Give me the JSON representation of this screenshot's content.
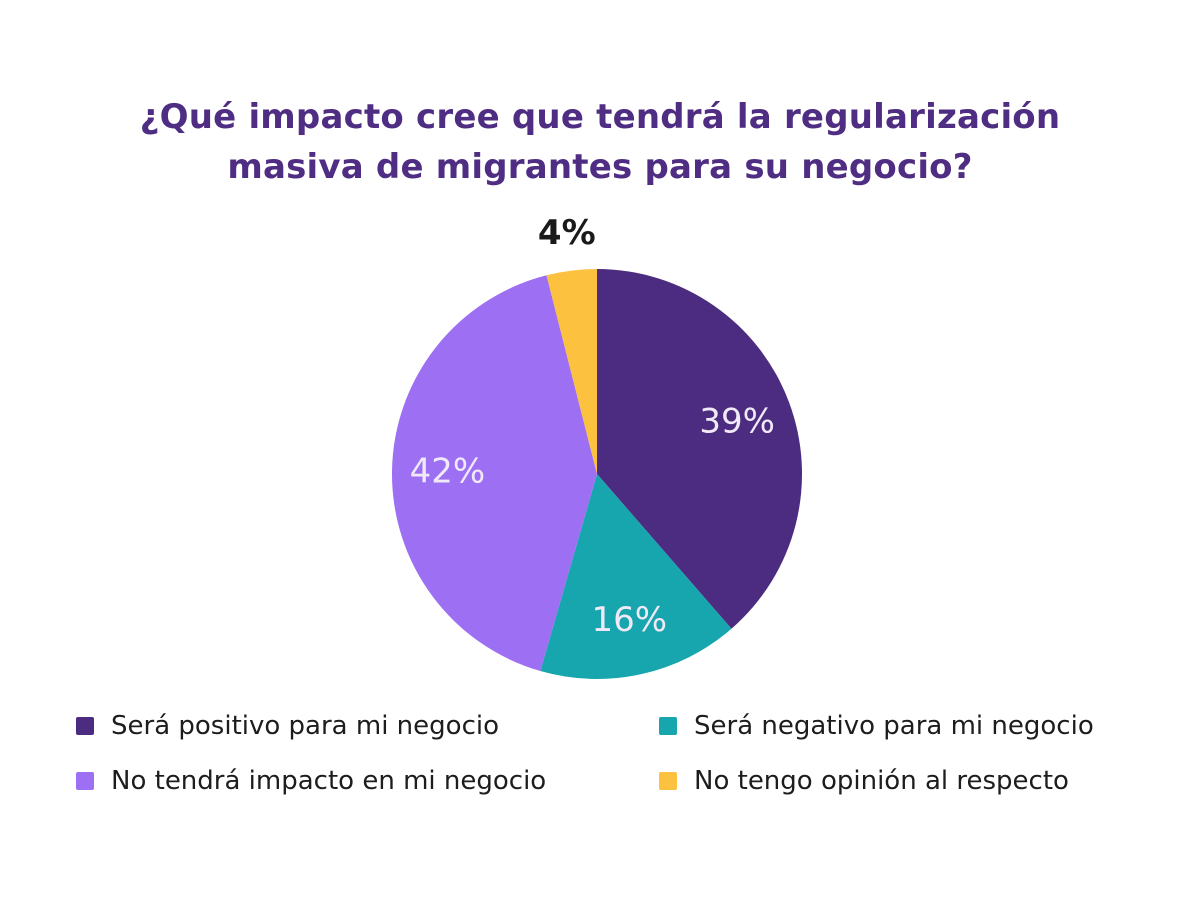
{
  "chart_data": {
    "type": "pie",
    "title": "¿Qué impacto cree que tendrá la regularización masiva de migrantes para su negocio?",
    "title_lines": [
      "¿Qué impacto cree que tendrá la regularización",
      "masiva de migrantes para su negocio?"
    ],
    "series": [
      {
        "label": "Será positivo para mi negocio",
        "value": 39,
        "display": "39%",
        "color": "#4C2C80"
      },
      {
        "label": "Será negativo para mi negocio",
        "value": 16,
        "display": "16%",
        "color": "#17A5AE"
      },
      {
        "label": "No tendrá impacto en mi negocio",
        "value": 42,
        "display": "42%",
        "color": "#9D6FF3"
      },
      {
        "label": "No tengo opinión al respecto",
        "value": 4,
        "display": "4%",
        "color": "#FCC13F"
      }
    ],
    "start_angle_deg": 0,
    "direction": "clockwise",
    "legend_position": "bottom",
    "colors": {
      "title": "#4F2D82",
      "legend_text": "#1D1D1F",
      "inside_label": "#EFE9F8",
      "outside_label": "#1A1A1A",
      "background": "#FFFFFF"
    }
  }
}
